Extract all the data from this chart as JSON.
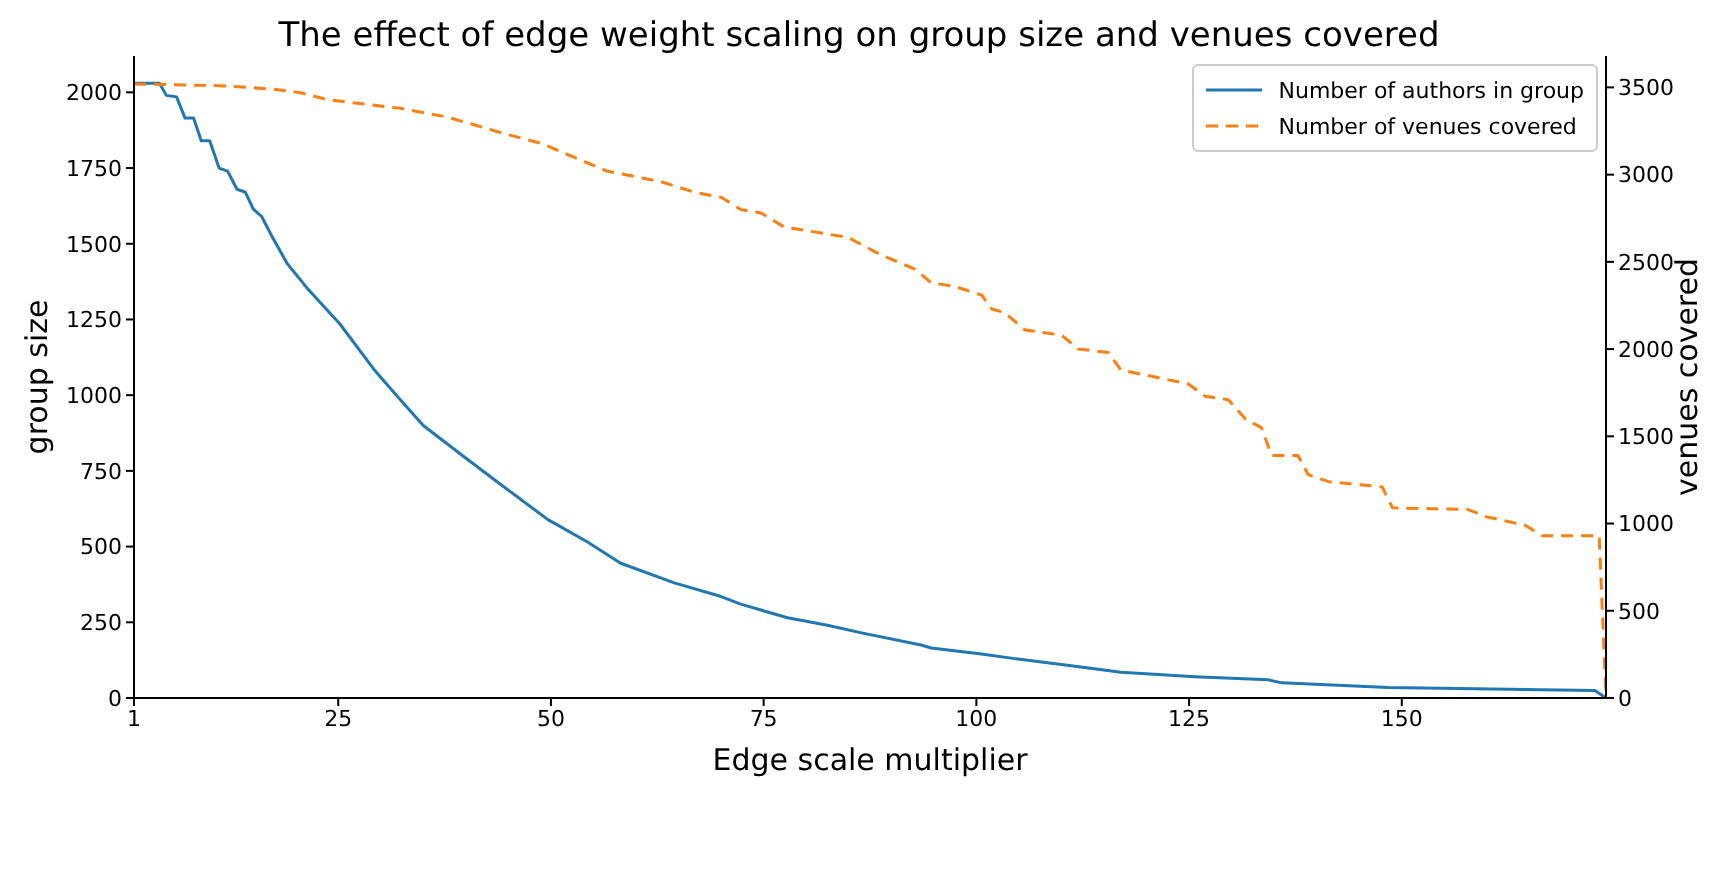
{
  "chart_data": {
    "type": "line",
    "title": "The effect of edge weight scaling on group size and venues covered",
    "xlabel": "Edge scale multiplier",
    "ylabel": "group size",
    "y2label": "venues covered",
    "xlim": [
      1,
      174
    ],
    "xticks": [
      1,
      25,
      50,
      75,
      100,
      125,
      150
    ],
    "ylim": [
      0,
      2120
    ],
    "yticks": [
      0,
      250,
      500,
      750,
      1000,
      1250,
      1500,
      1750,
      2000
    ],
    "y2lim": [
      0,
      3680
    ],
    "y2ticks": [
      0,
      500,
      1000,
      1500,
      2000,
      2500,
      3000,
      3500
    ],
    "grid": false,
    "legend": "top right",
    "marker": "none",
    "series": [
      {
        "name": "Number of authors in group",
        "color": "#1f77b4",
        "line_style": "solid",
        "x": [
          1,
          4,
          4.8,
          6,
          7,
          8,
          8.9,
          9.9,
          11,
          12,
          13.1,
          14.1,
          15,
          16,
          17.2,
          19,
          21.3,
          25.2,
          29.2,
          32.3,
          35,
          39.4,
          44.1,
          49.6,
          54.3,
          58.2,
          64.5,
          70,
          72.3,
          77.8,
          82.5,
          86.5,
          93.5,
          94.7,
          100.6,
          104.5,
          111.6,
          117,
          125.7,
          134.3,
          135.9,
          148.4,
          172.7,
          174
        ],
        "values": [
          2030,
          2030,
          1990,
          1985,
          1915,
          1915,
          1840,
          1840,
          1750,
          1740,
          1680,
          1670,
          1615,
          1590,
          1525,
          1435,
          1355,
          1235,
          1085,
          985,
          900,
          805,
          705,
          590,
          515,
          445,
          380,
          335,
          310,
          265,
          240,
          215,
          175,
          165,
          145,
          130,
          105,
          85,
          70,
          60,
          50,
          35,
          25,
          0
        ]
      },
      {
        "name": "Number of venues covered",
        "color": "#ff7f0e",
        "line_style": "dashed",
        "axis": "y2",
        "x": [
          1,
          11.1,
          17.4,
          20.5,
          23.7,
          32.3,
          37.8,
          44.9,
          48.8,
          56.6,
          62.9,
          66.8,
          70,
          72.3,
          74.7,
          77.4,
          84.9,
          88.8,
          92.7,
          94.7,
          97.4,
          100.6,
          101.8,
          103.3,
          105.7,
          110,
          112,
          115.5,
          117,
          121,
          124.9,
          126.9,
          129.6,
          131.6,
          133.5,
          134.7,
          137.8,
          139,
          141.4,
          147.7,
          148.9,
          157.8,
          159.8,
          164.5,
          166.5,
          173.2,
          174
        ],
        "values": [
          3520,
          3510,
          3490,
          3470,
          3430,
          3380,
          3330,
          3230,
          3180,
          3020,
          2960,
          2900,
          2870,
          2800,
          2780,
          2700,
          2640,
          2540,
          2460,
          2380,
          2360,
          2310,
          2230,
          2210,
          2110,
          2080,
          2000,
          1980,
          1880,
          1840,
          1800,
          1730,
          1710,
          1600,
          1550,
          1390,
          1390,
          1280,
          1240,
          1210,
          1090,
          1080,
          1040,
          990,
          930,
          930,
          0
        ]
      }
    ]
  }
}
